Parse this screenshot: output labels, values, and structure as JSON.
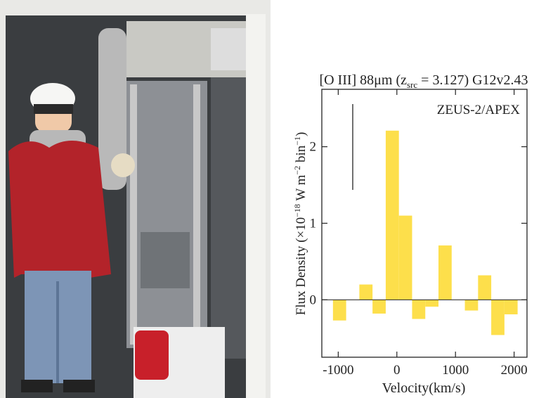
{
  "chart_data": {
    "type": "histogram",
    "title_parts": [
      "[O III] 88μm (z",
      "src",
      " = 3.127) G12v2.43"
    ],
    "ylabel_parts": [
      "Flux Density (×10",
      "−18",
      " W m",
      "−2",
      " bin",
      "−1",
      ")"
    ],
    "xlabel": "Velocity(km/s)",
    "annotation": "ZEUS-2/APEX",
    "bins": [
      -1090,
      -865,
      -640,
      -415,
      -190,
      35,
      260,
      485,
      710,
      935,
      1160,
      1385,
      1610,
      1835,
      2060
    ],
    "counts": [
      -0.27,
      0,
      0.2,
      -0.18,
      2.21,
      1.1,
      -0.25,
      -0.09,
      0.71,
      0,
      -0.14,
      0.32,
      -0.46,
      -0.19
    ],
    "color": "#fddf4b",
    "xlim": [
      -1280,
      2220
    ],
    "ylim": [
      -0.75,
      2.75
    ],
    "xticks": [
      -1000,
      0,
      1000,
      2000
    ],
    "yticks": [
      0,
      1,
      2
    ]
  }
}
